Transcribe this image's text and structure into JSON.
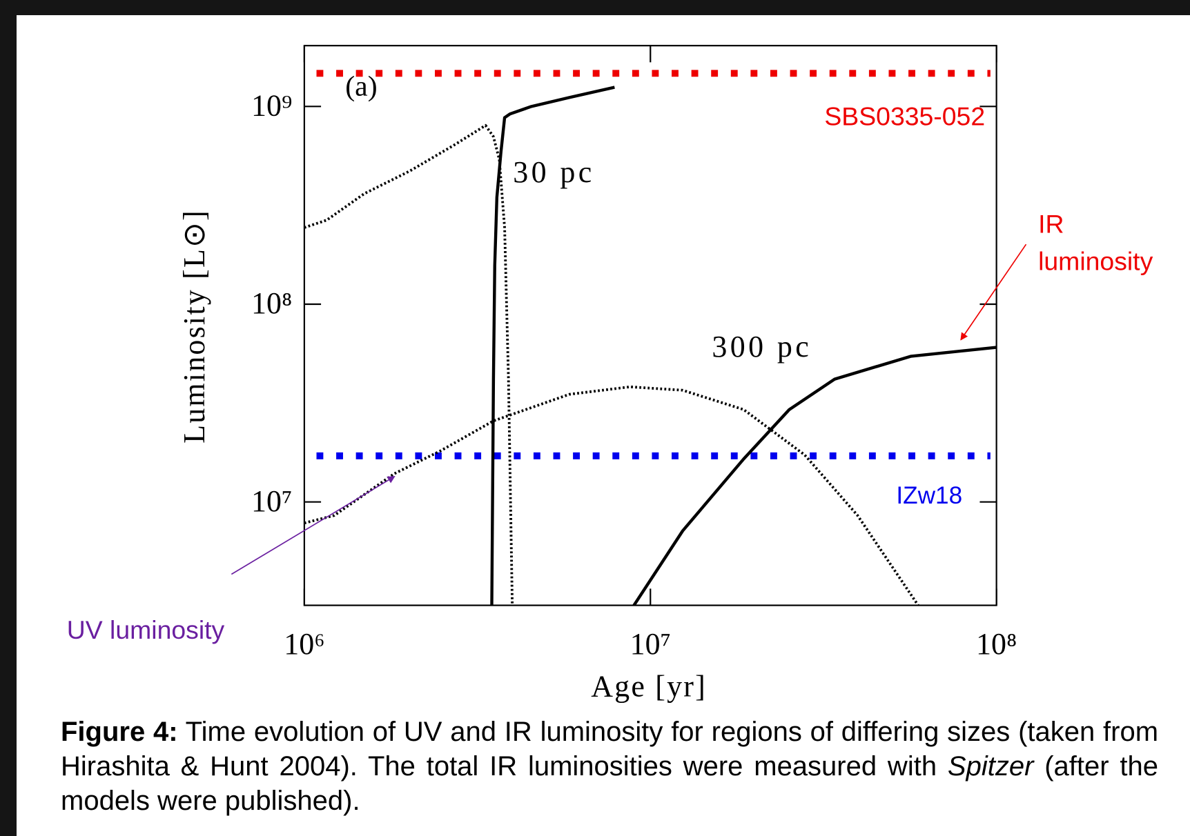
{
  "chart_data": {
    "type": "line",
    "xlabel": "Age [yr]",
    "ylabel": "Luminosity [L⊙]",
    "xscale": "log",
    "yscale": "log",
    "xlim": [
      1000000,
      100000000
    ],
    "ylim": [
      3000000,
      2030000000
    ],
    "xticks": [
      {
        "value": 1000000,
        "label": "10⁶"
      },
      {
        "value": 10000000,
        "label": "10⁷"
      },
      {
        "value": 100000000,
        "label": "10⁸"
      }
    ],
    "yticks": [
      {
        "value": 10000000,
        "label": "10⁷"
      },
      {
        "value": 100000000,
        "label": "10⁸"
      },
      {
        "value": 1000000000,
        "label": "10⁹"
      }
    ],
    "series": [
      {
        "color": "#000000",
        "style": "solid",
        "x": [
          3480000,
          3520000,
          3550000,
          3600000,
          3700000,
          3790000,
          3930000,
          4530000,
          5830000,
          7880000
        ],
        "values": [
          3000000,
          41800000,
          157000000,
          347000000,
          589000000,
          877000000,
          916000000,
          1000000000,
          1110000000,
          1250000000
        ]
      },
      {
        "color": "#000000",
        "style": "dotted",
        "x": [
          1000000,
          1160000,
          1490000,
          2020000,
          2730000,
          3340000,
          3520000,
          3660000,
          3790000,
          3890000,
          3990000
        ],
        "values": [
          244000000,
          266000000,
          362000000,
          472000000,
          643000000,
          802000000,
          703000000,
          540000000,
          244000000,
          41800000,
          3000000
        ]
      },
      {
        "color": "#000000",
        "style": "solid",
        "x": [
          8960000,
          12400000,
          18600000,
          25200000,
          34100000,
          56500000,
          100000000
        ],
        "values": [
          3000000,
          7150000,
          16500000,
          29300000,
          41800000,
          54500000,
          60500000
        ]
      },
      {
        "color": "#000000",
        "style": "dotted",
        "x": [
          1000000,
          1220000,
          1820000,
          2470000,
          3520000,
          5830000,
          8730000,
          12400000,
          18600000,
          27900000,
          39700000,
          59400000
        ],
        "values": [
          7820000,
          8540000,
          13900000,
          18100000,
          25700000,
          35000000,
          38200000,
          36700000,
          29300000,
          17300000,
          8540000,
          3000000
        ]
      }
    ],
    "reference_lines": [
      {
        "label": "SBS0335-052",
        "value": 1470000000,
        "color": "#ee0000"
      },
      {
        "label": "IZw18",
        "value": 17100000,
        "color": "#0000ee"
      }
    ],
    "annotations": [
      "(a)",
      "30 pc",
      "300 pc"
    ],
    "arrows": [
      {
        "text_lines": [
          "IR",
          "luminosity"
        ],
        "color": "#ee0000"
      },
      {
        "text_lines": [
          "UV luminosity"
        ],
        "color": "#6a1fa0"
      }
    ]
  },
  "caption": {
    "label": "Figure 4:",
    "text_before": "Time evolution of UV and IR luminosity for regions of differing sizes (taken from Hirashita & Hunt 2004). The total IR luminosities were measured with",
    "emphasis": "Spitzer",
    "text_after": "(after the models were published)."
  }
}
